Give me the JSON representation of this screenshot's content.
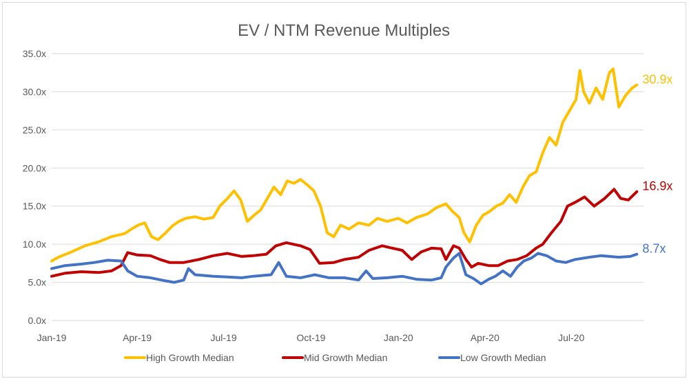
{
  "chart_data": {
    "type": "line",
    "title": "EV / NTM Revenue Multiples",
    "xlabel": "",
    "ylabel": "",
    "ylim": [
      0,
      35
    ],
    "y_ticks": [
      "0.0x",
      "5.0x",
      "10.0x",
      "15.0x",
      "20.0x",
      "25.0x",
      "30.0x",
      "35.0x"
    ],
    "y_tick_values": [
      0,
      5,
      10,
      15,
      20,
      25,
      30,
      35
    ],
    "x_range": [
      "2019-01-01",
      "2020-09-15"
    ],
    "x_ticks": [
      {
        "date": "2019-01-01",
        "label": "Jan-19"
      },
      {
        "date": "2019-04-01",
        "label": "Apr-19"
      },
      {
        "date": "2019-07-01",
        "label": "Jul-19"
      },
      {
        "date": "2019-10-01",
        "label": "Oct-19"
      },
      {
        "date": "2020-01-01",
        "label": "Jan-20"
      },
      {
        "date": "2020-04-01",
        "label": "Apr-20"
      },
      {
        "date": "2020-07-01",
        "label": "Jul-20"
      }
    ],
    "grid": "horizontal",
    "legend_position": "bottom",
    "series": [
      {
        "name": "High Growth Median",
        "color": "#FFC000",
        "end_label": "30.9x",
        "points": [
          [
            "2019-01-01",
            7.8
          ],
          [
            "2019-01-08",
            8.3
          ],
          [
            "2019-01-22",
            9.0
          ],
          [
            "2019-02-05",
            9.8
          ],
          [
            "2019-02-19",
            10.3
          ],
          [
            "2019-03-05",
            11.0
          ],
          [
            "2019-03-19",
            11.4
          ],
          [
            "2019-03-26",
            12.0
          ],
          [
            "2019-04-02",
            12.5
          ],
          [
            "2019-04-09",
            12.8
          ],
          [
            "2019-04-16",
            11.0
          ],
          [
            "2019-04-23",
            10.6
          ],
          [
            "2019-05-01",
            11.5
          ],
          [
            "2019-05-08",
            12.4
          ],
          [
            "2019-05-15",
            13.0
          ],
          [
            "2019-05-22",
            13.4
          ],
          [
            "2019-06-01",
            13.6
          ],
          [
            "2019-06-10",
            13.3
          ],
          [
            "2019-06-20",
            13.5
          ],
          [
            "2019-06-27",
            15.0
          ],
          [
            "2019-07-05",
            16.0
          ],
          [
            "2019-07-12",
            17.0
          ],
          [
            "2019-07-19",
            15.8
          ],
          [
            "2019-07-26",
            13.0
          ],
          [
            "2019-08-02",
            13.8
          ],
          [
            "2019-08-09",
            14.5
          ],
          [
            "2019-08-16",
            16.0
          ],
          [
            "2019-08-23",
            17.5
          ],
          [
            "2019-08-30",
            16.5
          ],
          [
            "2019-09-06",
            18.3
          ],
          [
            "2019-09-13",
            18.0
          ],
          [
            "2019-09-20",
            18.5
          ],
          [
            "2019-09-27",
            17.8
          ],
          [
            "2019-10-04",
            17.0
          ],
          [
            "2019-10-11",
            15.0
          ],
          [
            "2019-10-18",
            11.5
          ],
          [
            "2019-10-25",
            11.0
          ],
          [
            "2019-11-01",
            12.5
          ],
          [
            "2019-11-10",
            12.0
          ],
          [
            "2019-11-20",
            12.8
          ],
          [
            "2019-12-01",
            12.5
          ],
          [
            "2019-12-10",
            13.4
          ],
          [
            "2019-12-20",
            13.0
          ],
          [
            "2020-01-01",
            13.4
          ],
          [
            "2020-01-10",
            12.8
          ],
          [
            "2020-01-20",
            13.5
          ],
          [
            "2020-02-01",
            14.0
          ],
          [
            "2020-02-10",
            14.8
          ],
          [
            "2020-02-20",
            15.3
          ],
          [
            "2020-02-27",
            14.3
          ],
          [
            "2020-03-05",
            13.5
          ],
          [
            "2020-03-10",
            11.5
          ],
          [
            "2020-03-16",
            10.3
          ],
          [
            "2020-03-23",
            12.5
          ],
          [
            "2020-03-30",
            13.8
          ],
          [
            "2020-04-06",
            14.3
          ],
          [
            "2020-04-13",
            15.0
          ],
          [
            "2020-04-20",
            15.4
          ],
          [
            "2020-04-27",
            16.5
          ],
          [
            "2020-05-04",
            15.5
          ],
          [
            "2020-05-11",
            17.5
          ],
          [
            "2020-05-18",
            19.0
          ],
          [
            "2020-05-25",
            19.5
          ],
          [
            "2020-06-01",
            22.0
          ],
          [
            "2020-06-08",
            24.0
          ],
          [
            "2020-06-15",
            23.0
          ],
          [
            "2020-06-22",
            26.0
          ],
          [
            "2020-06-29",
            27.5
          ],
          [
            "2020-07-06",
            29.0
          ],
          [
            "2020-07-10",
            32.8
          ],
          [
            "2020-07-14",
            30.0
          ],
          [
            "2020-07-20",
            28.5
          ],
          [
            "2020-07-27",
            30.5
          ],
          [
            "2020-08-03",
            29.0
          ],
          [
            "2020-08-10",
            32.5
          ],
          [
            "2020-08-14",
            33.0
          ],
          [
            "2020-08-20",
            28.0
          ],
          [
            "2020-08-27",
            29.5
          ],
          [
            "2020-09-03",
            30.5
          ],
          [
            "2020-09-08",
            30.9
          ]
        ]
      },
      {
        "name": "Mid Growth Median",
        "color": "#C00000",
        "end_label": "16.9x",
        "points": [
          [
            "2019-01-01",
            5.8
          ],
          [
            "2019-01-15",
            6.2
          ],
          [
            "2019-02-01",
            6.4
          ],
          [
            "2019-02-20",
            6.3
          ],
          [
            "2019-03-05",
            6.5
          ],
          [
            "2019-03-15",
            7.2
          ],
          [
            "2019-03-22",
            8.9
          ],
          [
            "2019-04-01",
            8.6
          ],
          [
            "2019-04-15",
            8.5
          ],
          [
            "2019-04-25",
            8.0
          ],
          [
            "2019-05-05",
            7.6
          ],
          [
            "2019-05-20",
            7.6
          ],
          [
            "2019-06-05",
            8.0
          ],
          [
            "2019-06-20",
            8.5
          ],
          [
            "2019-07-05",
            8.8
          ],
          [
            "2019-07-20",
            8.4
          ],
          [
            "2019-08-01",
            8.5
          ],
          [
            "2019-08-15",
            8.7
          ],
          [
            "2019-08-25",
            9.8
          ],
          [
            "2019-09-05",
            10.2
          ],
          [
            "2019-09-20",
            9.8
          ],
          [
            "2019-09-30",
            9.3
          ],
          [
            "2019-10-10",
            7.5
          ],
          [
            "2019-10-25",
            7.6
          ],
          [
            "2019-11-05",
            8.0
          ],
          [
            "2019-11-20",
            8.3
          ],
          [
            "2019-12-01",
            9.2
          ],
          [
            "2019-12-15",
            9.8
          ],
          [
            "2019-12-25",
            9.5
          ],
          [
            "2020-01-05",
            9.2
          ],
          [
            "2020-01-15",
            8.0
          ],
          [
            "2020-01-25",
            9.0
          ],
          [
            "2020-02-05",
            9.5
          ],
          [
            "2020-02-15",
            9.4
          ],
          [
            "2020-02-20",
            8.0
          ],
          [
            "2020-02-28",
            9.8
          ],
          [
            "2020-03-05",
            9.5
          ],
          [
            "2020-03-12",
            8.0
          ],
          [
            "2020-03-18",
            7.0
          ],
          [
            "2020-03-25",
            7.5
          ],
          [
            "2020-04-05",
            7.2
          ],
          [
            "2020-04-15",
            7.2
          ],
          [
            "2020-04-25",
            7.8
          ],
          [
            "2020-05-05",
            8.0
          ],
          [
            "2020-05-15",
            8.5
          ],
          [
            "2020-05-25",
            9.5
          ],
          [
            "2020-06-01",
            10.0
          ],
          [
            "2020-06-10",
            11.5
          ],
          [
            "2020-06-20",
            13.0
          ],
          [
            "2020-06-27",
            15.0
          ],
          [
            "2020-07-05",
            15.5
          ],
          [
            "2020-07-15",
            16.2
          ],
          [
            "2020-07-25",
            15.0
          ],
          [
            "2020-08-05",
            16.0
          ],
          [
            "2020-08-15",
            17.2
          ],
          [
            "2020-08-22",
            16.0
          ],
          [
            "2020-08-30",
            15.8
          ],
          [
            "2020-09-08",
            16.9
          ]
        ]
      },
      {
        "name": "Low Growth Median",
        "color": "#4472C4",
        "end_label": "8.7x",
        "points": [
          [
            "2019-01-01",
            6.8
          ],
          [
            "2019-01-15",
            7.2
          ],
          [
            "2019-02-01",
            7.4
          ],
          [
            "2019-02-15",
            7.6
          ],
          [
            "2019-03-01",
            7.9
          ],
          [
            "2019-03-15",
            7.8
          ],
          [
            "2019-03-22",
            6.5
          ],
          [
            "2019-04-01",
            5.8
          ],
          [
            "2019-04-15",
            5.6
          ],
          [
            "2019-05-01",
            5.2
          ],
          [
            "2019-05-10",
            5.0
          ],
          [
            "2019-05-20",
            5.3
          ],
          [
            "2019-05-25",
            6.8
          ],
          [
            "2019-06-01",
            6.0
          ],
          [
            "2019-06-20",
            5.8
          ],
          [
            "2019-07-05",
            5.7
          ],
          [
            "2019-07-20",
            5.6
          ],
          [
            "2019-08-01",
            5.8
          ],
          [
            "2019-08-20",
            6.0
          ],
          [
            "2019-08-28",
            7.6
          ],
          [
            "2019-09-05",
            5.8
          ],
          [
            "2019-09-20",
            5.6
          ],
          [
            "2019-10-05",
            6.0
          ],
          [
            "2019-10-20",
            5.6
          ],
          [
            "2019-11-05",
            5.6
          ],
          [
            "2019-11-20",
            5.3
          ],
          [
            "2019-11-28",
            6.5
          ],
          [
            "2019-12-05",
            5.5
          ],
          [
            "2019-12-20",
            5.6
          ],
          [
            "2020-01-05",
            5.8
          ],
          [
            "2020-01-20",
            5.4
          ],
          [
            "2020-02-05",
            5.3
          ],
          [
            "2020-02-15",
            5.6
          ],
          [
            "2020-02-20",
            7.0
          ],
          [
            "2020-02-28",
            8.2
          ],
          [
            "2020-03-05",
            8.8
          ],
          [
            "2020-03-12",
            6.0
          ],
          [
            "2020-03-20",
            5.5
          ],
          [
            "2020-03-28",
            4.8
          ],
          [
            "2020-04-05",
            5.4
          ],
          [
            "2020-04-12",
            5.8
          ],
          [
            "2020-04-20",
            6.5
          ],
          [
            "2020-04-28",
            5.8
          ],
          [
            "2020-05-05",
            7.0
          ],
          [
            "2020-05-12",
            7.8
          ],
          [
            "2020-05-20",
            8.2
          ],
          [
            "2020-05-27",
            8.8
          ],
          [
            "2020-06-05",
            8.5
          ],
          [
            "2020-06-15",
            7.8
          ],
          [
            "2020-06-25",
            7.6
          ],
          [
            "2020-07-05",
            8.0
          ],
          [
            "2020-07-20",
            8.3
          ],
          [
            "2020-08-01",
            8.5
          ],
          [
            "2020-08-20",
            8.3
          ],
          [
            "2020-09-01",
            8.4
          ],
          [
            "2020-09-08",
            8.7
          ]
        ]
      }
    ]
  }
}
